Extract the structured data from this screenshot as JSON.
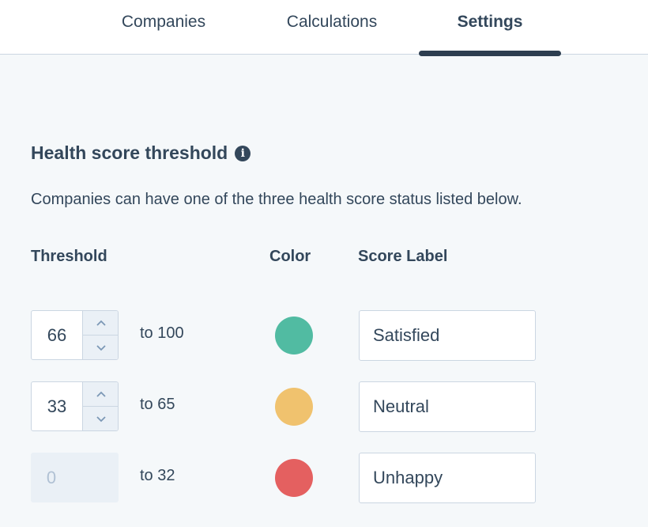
{
  "tabs": [
    {
      "label": "Companies",
      "active": false
    },
    {
      "label": "Calculations",
      "active": false
    },
    {
      "label": "Settings",
      "active": true
    }
  ],
  "section": {
    "title": "Health score threshold",
    "info_icon": "info-circle-icon",
    "description": "Companies can have one of the three health score status listed below."
  },
  "columns": {
    "threshold": "Threshold",
    "color": "Color",
    "score_label": "Score Label"
  },
  "rows": [
    {
      "min": "66",
      "range_text": "to 100",
      "color": "#51bba2",
      "label": "Satisfied",
      "editable": true
    },
    {
      "min": "33",
      "range_text": "to 65",
      "color": "#f0c26e",
      "label": "Neutral",
      "editable": true
    },
    {
      "min": "0",
      "range_text": "to 32",
      "color": "#e46060",
      "label": "Unhappy",
      "editable": false
    }
  ],
  "colors": {
    "text": "#33475b",
    "border": "#cbd6e2",
    "background": "#f5f8fa",
    "tab_underline": "#2d3e50"
  }
}
